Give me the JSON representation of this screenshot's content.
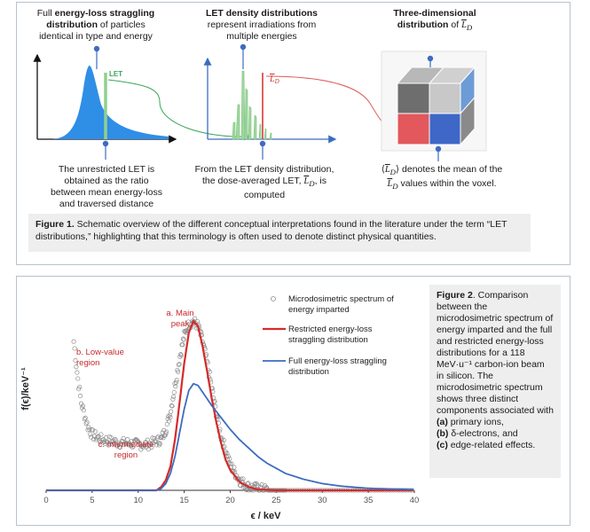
{
  "figure1": {
    "col1_top_pre": "Full ",
    "col1_top_bold": "energy-loss straggling distribution",
    "col1_top_post": " of particles identical in type and energy",
    "col2_top_bold": "LET density distributions",
    "col2_top_rest": "represent irradiations from multiple energies",
    "col3_top_bold": "Three-dimensional distribution",
    "col3_top_rest": " of ",
    "let_label": "LET",
    "ld_label": "L",
    "ld_sub": "D",
    "col1_bottom": "The unrestricted LET is obtained as the ratio between mean energy-loss and traversed distance",
    "col2_bottom_a": "From the LET density distribution, the dose-averaged",
    "col2_bottom_b": "LET, ",
    "col2_bottom_c": ", is computed",
    "col3_bottom_a": "⟨",
    "col3_bottom_b": "⟩ denotes the mean of the",
    "col3_bottom_c": " values within the voxel.",
    "caption_bold": "Figure 1.",
    "caption_text": " Schematic overview of the different conceptual interpretations found in the literature under the term “LET distributions,” highlighting that this terminology is often used to denote distinct physical quantities."
  },
  "figure2": {
    "caption_bold": "Figure 2",
    "caption_text": ". Comparison between the microdosimetric spectrum of energy imparted and the full and restricted energy-loss distributions for a 118 MeV·u⁻¹ carbon-ion beam in silicon. The microdosimetric spectrum shows three distinct components associated with",
    "item_a_tag": "(a)",
    "item_a_text": " primary ions,",
    "item_b_tag": "(b)",
    "item_b_text": " δ-electrons, and",
    "item_c_tag": "(c)",
    "item_c_text": " edge-related effects."
  },
  "chart_data": {
    "type": "line",
    "xlabel": "ϵ / keV",
    "ylabel": "f(ϵ)/keV⁻¹",
    "xlim": [
      0,
      40
    ],
    "xticks": [
      0,
      5,
      10,
      15,
      20,
      25,
      30,
      35,
      40
    ],
    "x_tick_labels": [
      "0",
      "5",
      "10",
      "15",
      "20",
      "25",
      "30",
      "35",
      "40"
    ],
    "grid": false,
    "legend_position": "top-right",
    "colors": {
      "spectrum": "#8c8c8c",
      "restricted": "#d62a2a",
      "full": "#3c6cbf"
    },
    "series": [
      {
        "name": "Microdosimetric spectrum of energy imparted",
        "marker": "open-circle",
        "x": [
          3,
          3.4,
          3.8,
          4.5,
          5,
          6,
          7,
          8,
          9,
          10,
          11,
          12,
          12.5,
          13,
          13.5,
          14,
          14.5,
          15,
          15.5,
          16,
          16.5,
          17,
          17.5,
          18,
          18.5,
          19,
          20,
          21,
          22,
          23,
          24,
          25,
          30,
          35,
          40
        ],
        "y": [
          0.88,
          0.68,
          0.52,
          0.38,
          0.33,
          0.3,
          0.29,
          0.28,
          0.28,
          0.27,
          0.27,
          0.29,
          0.3,
          0.36,
          0.46,
          0.62,
          0.78,
          0.91,
          0.98,
          1.0,
          0.97,
          0.88,
          0.75,
          0.6,
          0.45,
          0.32,
          0.15,
          0.06,
          0.02,
          0.01,
          0.0,
          0.0,
          0.0,
          0.0,
          0.0
        ]
      },
      {
        "name": "Restricted energy-loss straggling distribution",
        "x": [
          0,
          10,
          12,
          12.5,
          13,
          13.5,
          14,
          14.5,
          15,
          15.5,
          16,
          16.5,
          17,
          17.5,
          18,
          18.5,
          19,
          19.5,
          20,
          21,
          22,
          23,
          25,
          30,
          40
        ],
        "y": [
          0,
          0,
          0,
          0.02,
          0.06,
          0.14,
          0.3,
          0.52,
          0.75,
          0.93,
          1.0,
          0.97,
          0.85,
          0.7,
          0.54,
          0.4,
          0.28,
          0.18,
          0.12,
          0.05,
          0.02,
          0.005,
          0,
          0,
          0
        ]
      },
      {
        "name": "Full energy-loss straggling distribution",
        "x": [
          0,
          11,
          12,
          12.5,
          13,
          13.5,
          14,
          14.5,
          15,
          15.5,
          16,
          16.5,
          17,
          18,
          19,
          20,
          21,
          22,
          23,
          24,
          25,
          26,
          28,
          30,
          32,
          35,
          40
        ],
        "y": [
          0,
          0,
          0,
          0.01,
          0.04,
          0.1,
          0.2,
          0.34,
          0.48,
          0.59,
          0.63,
          0.62,
          0.58,
          0.5,
          0.43,
          0.36,
          0.3,
          0.25,
          0.2,
          0.16,
          0.13,
          0.1,
          0.065,
          0.04,
          0.025,
          0.012,
          0.004
        ]
      }
    ],
    "annotations": [
      {
        "text": "a. Main peak",
        "x": 13.5,
        "y": 0.93
      },
      {
        "text": "b. Low-value region",
        "x": 3.4,
        "y": 0.72
      },
      {
        "text": "c. Intermediate region",
        "x": 9.5,
        "y": 0.18
      }
    ]
  }
}
